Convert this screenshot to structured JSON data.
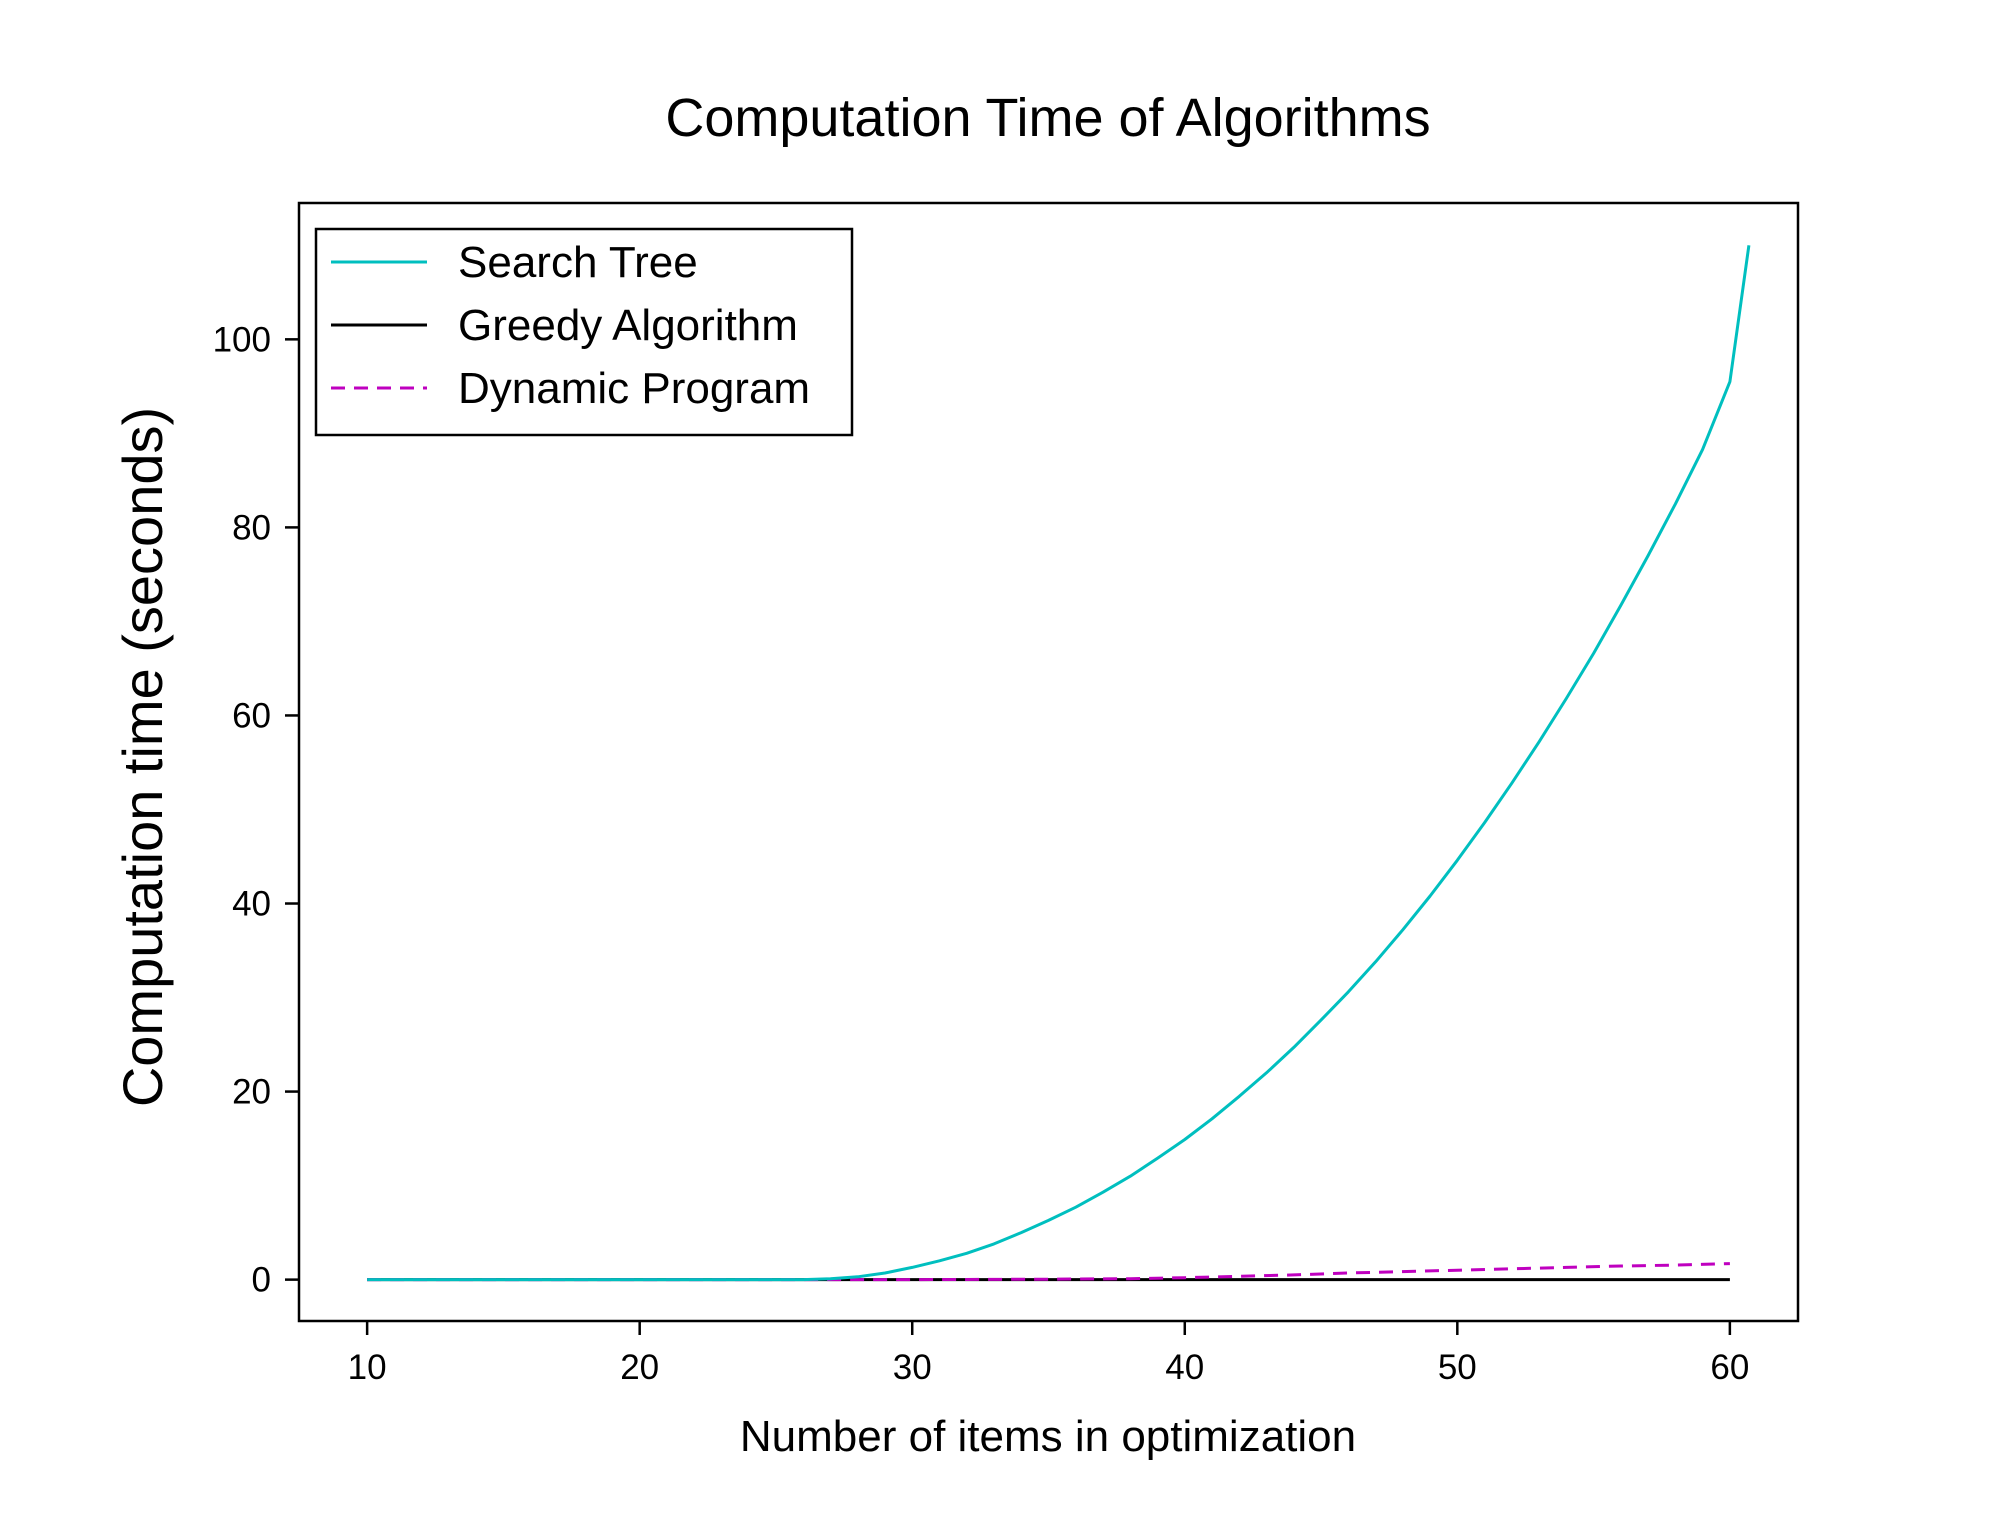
{
  "chart_data": {
    "type": "line",
    "title": "Computation Time of Algorithms",
    "xlabel": "Number of items in optimization",
    "ylabel": "Computation time (seconds)",
    "xlim": [
      7.5,
      62.5
    ],
    "ylim": [
      -4.4,
      114.5
    ],
    "xticks": [
      10,
      20,
      30,
      40,
      50,
      60
    ],
    "yticks": [
      0,
      20,
      40,
      60,
      80,
      100
    ],
    "grid": false,
    "legend_position": "top-left",
    "series": [
      {
        "name": "Search Tree",
        "color": "#00bfbf",
        "dash": "solid",
        "x": [
          10,
          20,
          26,
          27,
          28,
          29,
          30,
          31,
          32,
          33,
          34,
          35,
          36,
          37,
          38,
          39,
          40,
          41,
          42,
          43,
          44,
          45,
          46,
          47,
          48,
          49,
          50,
          51,
          52,
          53,
          54,
          55,
          56,
          57,
          58,
          59,
          60,
          60.7
        ],
        "y": [
          0,
          0,
          0,
          0.1,
          0.3,
          0.7,
          1.3,
          2.0,
          2.8,
          3.8,
          5.0,
          6.3,
          7.7,
          9.3,
          11.0,
          12.9,
          14.9,
          17.1,
          19.5,
          22.0,
          24.7,
          27.6,
          30.6,
          33.8,
          37.2,
          40.8,
          44.6,
          48.6,
          52.8,
          57.2,
          61.8,
          66.6,
          71.7,
          77.0,
          82.5,
          88.3,
          95.5,
          110
        ]
      },
      {
        "name": "Greedy Algorithm",
        "color": "#000000",
        "dash": "solid",
        "x": [
          10,
          20,
          30,
          40,
          50,
          60
        ],
        "y": [
          0,
          0,
          0,
          0,
          0,
          0
        ]
      },
      {
        "name": "Dynamic Program",
        "color": "#bf00bf",
        "dash": "dashed",
        "x": [
          10,
          20,
          30,
          35,
          38,
          40,
          42,
          44,
          46,
          48,
          50,
          52,
          54,
          56,
          58,
          60
        ],
        "y": [
          0,
          0,
          0,
          0.05,
          0.1,
          0.2,
          0.35,
          0.5,
          0.7,
          0.85,
          1.0,
          1.15,
          1.3,
          1.45,
          1.55,
          1.7
        ]
      }
    ]
  }
}
